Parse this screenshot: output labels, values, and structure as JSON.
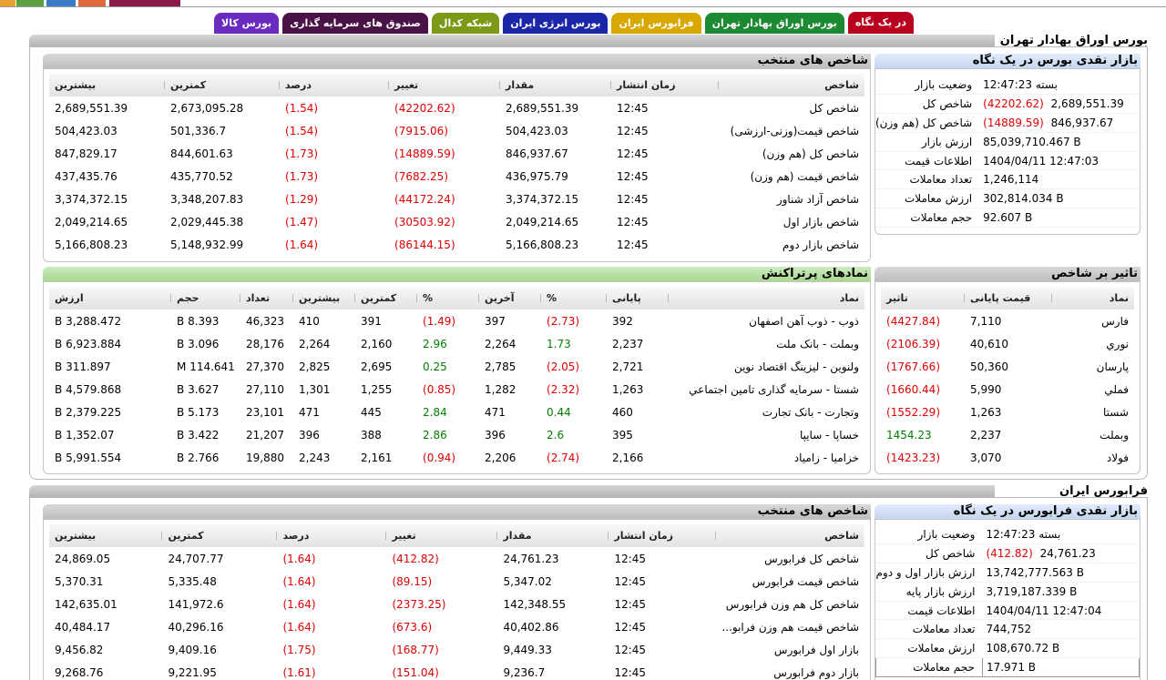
{
  "colors": {
    "tab_glance": "#b9001f",
    "tab_tse": "#1c8a32",
    "tab_ifb": "#d8a700",
    "tab_energy": "#1b27a8",
    "tab_shekadal": "#7c9a17",
    "tab_funds": "#4a1247",
    "tab_kala": "#6a2cc0",
    "negative": "#dd0000",
    "positive": "#007f00"
  },
  "tabs": [
    {
      "label": "در یک نگاه",
      "key": "tab_glance",
      "active": true
    },
    {
      "label": "بورس اوراق بهادار تهران",
      "key": "tab_tse"
    },
    {
      "label": "فرابورس ایران",
      "key": "tab_ifb"
    },
    {
      "label": "بورس انرژی ایران",
      "key": "tab_energy"
    },
    {
      "label": "شبکه کدال",
      "key": "tab_shekadal"
    },
    {
      "label": "صندوق های سرمایه گذاری",
      "key": "tab_funds"
    },
    {
      "label": "بورس کالا",
      "key": "tab_kala"
    }
  ],
  "tse": {
    "title": "بورس اوراق بهادار تهران",
    "overview": {
      "title": "بازار نقدی بورس در یک نگاه",
      "rows": [
        {
          "label": "وضعیت بازار",
          "value": "بسته 12:47:23",
          "change": ""
        },
        {
          "label": "شاخص کل",
          "value": "2,689,551.39",
          "change": "(42202.62)"
        },
        {
          "label": "شاخص کل (هم وزن)",
          "value": "846,937.67",
          "change": "(14889.59)"
        },
        {
          "label": "ارزش بازار",
          "value": "85,039,710.467 B",
          "change": ""
        },
        {
          "label": "اطلاعات قیمت",
          "value": "1404/04/11 12:47:03",
          "change": ""
        },
        {
          "label": "تعداد معاملات",
          "value": "1,246,114",
          "change": ""
        },
        {
          "label": "ارزش معاملات",
          "value": "302,814.034 B",
          "change": ""
        },
        {
          "label": "حجم معاملات",
          "value": "92.607 B",
          "change": ""
        }
      ]
    },
    "indices": {
      "title": "شاخص های منتخب",
      "headers": [
        "شاخص",
        "زمان انتشار",
        "مقدار",
        "تغییر",
        "درصد",
        "کمترین",
        "بیشترین"
      ],
      "rows": [
        [
          "شاخص کل",
          "12:45",
          "2,689,551.39",
          "(42202.62)",
          "(1.54)",
          "2,673,095.28",
          "2,689,551.39"
        ],
        [
          "شاخص قیمت(وزنی-ارزشی)",
          "12:45",
          "504,423.03",
          "(7915.06)",
          "(1.54)",
          "501,336.7",
          "504,423.03"
        ],
        [
          "شاخص کل (هم وزن)",
          "12:45",
          "846,937.67",
          "(14889.59)",
          "(1.73)",
          "844,601.63",
          "847,829.17"
        ],
        [
          "شاخص قیمت (هم وزن)",
          "12:45",
          "436,975.79",
          "(7682.25)",
          "(1.73)",
          "435,770.52",
          "437,435.76"
        ],
        [
          "شاخص آزاد شناور",
          "12:45",
          "3,374,372.15",
          "(44172.24)",
          "(1.29)",
          "3,348,207.83",
          "3,374,372.15"
        ],
        [
          "شاخص بازار اول",
          "12:45",
          "2,049,214.65",
          "(30503.92)",
          "(1.47)",
          "2,029,445.38",
          "2,049,214.65"
        ],
        [
          "شاخص بازار دوم",
          "12:45",
          "5,166,808.23",
          "(86144.15)",
          "(1.64)",
          "5,148,932.99",
          "5,166,808.23"
        ]
      ]
    },
    "impact": {
      "title": "تاثیر بر شاخص",
      "headers": [
        "نماد",
        "قیمت پایانی",
        "تاثیر"
      ],
      "rows": [
        [
          "فارس",
          "7,110",
          "(4427.84)"
        ],
        [
          "نوري",
          "40,610",
          "(2106.39)"
        ],
        [
          "پارسان",
          "50,360",
          "(1767.66)"
        ],
        [
          "فملي",
          "5,990",
          "(1660.44)"
        ],
        [
          "شستا",
          "1,263",
          "(1552.29)"
        ],
        [
          "وبملت",
          "2,237",
          "1454.23"
        ],
        [
          "فولاد",
          "3,070",
          "(1423.23)"
        ]
      ]
    },
    "active": {
      "title": "نمادهای پرتراکنش",
      "headers": [
        "نماد",
        "پایانی",
        "%",
        "آخرین",
        "%",
        "کمترین",
        "بیشترین",
        "تعداد",
        "حجم",
        "ارزش"
      ],
      "rows": [
        [
          "ذوب - ذوب آهن اصفهان",
          "392",
          "(2.73)",
          "397",
          "(1.49)",
          "391",
          "410",
          "46,323",
          "8.393 B",
          "3,288.472 B"
        ],
        [
          "وبملت - بانک ملت",
          "2,237",
          "1.73",
          "2,264",
          "2.96",
          "2,160",
          "2,264",
          "28,176",
          "3.096 B",
          "6,923.884 B"
        ],
        [
          "ولنوین - لیزینگ اقتصاد نوین",
          "2,721",
          "(2.05)",
          "2,785",
          "0.25",
          "2,695",
          "2,825",
          "27,370",
          "114.641 M",
          "311.897 B"
        ],
        [
          "شستا - سرمایه گذاری تامین اجتماعي",
          "1,263",
          "(2.32)",
          "1,282",
          "(0.85)",
          "1,255",
          "1,301",
          "27,110",
          "3.627 B",
          "4,579.868 B"
        ],
        [
          "وتجارت - بانک تجارت",
          "460",
          "0.44",
          "471",
          "2.84",
          "445",
          "471",
          "23,101",
          "5.173 B",
          "2,379.225 B"
        ],
        [
          "خساپا - سایپا",
          "395",
          "2.6",
          "396",
          "2.86",
          "388",
          "396",
          "21,207",
          "3.422 B",
          "1,352.07 B"
        ],
        [
          "خزامیا - زامیاد",
          "2,166",
          "(2.74)",
          "2,206",
          "(0.94)",
          "2,161",
          "2,243",
          "19,880",
          "2.766 B",
          "5,991.554 B"
        ]
      ]
    }
  },
  "ifb": {
    "title": "فرابورس ایران",
    "overview": {
      "title": "بازار نقدی فرابورس در یک نگاه",
      "rows": [
        {
          "label": "وضعیت بازار",
          "value": "بسته 12:47:23",
          "change": ""
        },
        {
          "label": "شاخص کل",
          "value": "24,761.23",
          "change": "(412.82)"
        },
        {
          "label": "ارزش بازار اول و دوم",
          "value": "13,742,777.563 B",
          "change": ""
        },
        {
          "label": "ارزش بازار پایه",
          "value": "3,719,187.339 B",
          "change": ""
        },
        {
          "label": "اطلاعات قیمت",
          "value": "1404/04/11 12:47:04",
          "change": ""
        },
        {
          "label": "تعداد معاملات",
          "value": "744,752",
          "change": ""
        },
        {
          "label": "ارزش معاملات",
          "value": "108,670.72 B",
          "change": ""
        },
        {
          "label": "حجم معاملات",
          "value": "17.971 B",
          "change": ""
        }
      ]
    },
    "indices": {
      "title": "شاخص های منتخب",
      "headers": [
        "شاخص",
        "زمان انتشار",
        "مقدار",
        "تغییر",
        "درصد",
        "کمترین",
        "بیشترین"
      ],
      "rows": [
        [
          "شاخص كل فرابورس",
          "12:45",
          "24,761.23",
          "(412.82)",
          "(1.64)",
          "24,707.77",
          "24,869.05"
        ],
        [
          "شاخص قيمت فرابورس",
          "12:45",
          "5,347.02",
          "(89.15)",
          "(1.64)",
          "5,335.48",
          "5,370.31"
        ],
        [
          "شاخص کل هم وزن فرابورس",
          "12:45",
          "142,348.55",
          "(2373.25)",
          "(1.64)",
          "141,972.6",
          "142,635.01"
        ],
        [
          "شاخص قیمت هم وزن فرابو...",
          "12:45",
          "40,402.86",
          "(673.6)",
          "(1.64)",
          "40,296.16",
          "40,484.17"
        ],
        [
          "بازار اول فرابورس",
          "12:45",
          "9,449.33",
          "(168.77)",
          "(1.75)",
          "9,409.16",
          "9,456.82"
        ],
        [
          "بازار دوم فرابورس",
          "12:45",
          "9,236.7",
          "(151.04)",
          "(1.61)",
          "9,221.95",
          "9,268.76"
        ]
      ]
    }
  }
}
